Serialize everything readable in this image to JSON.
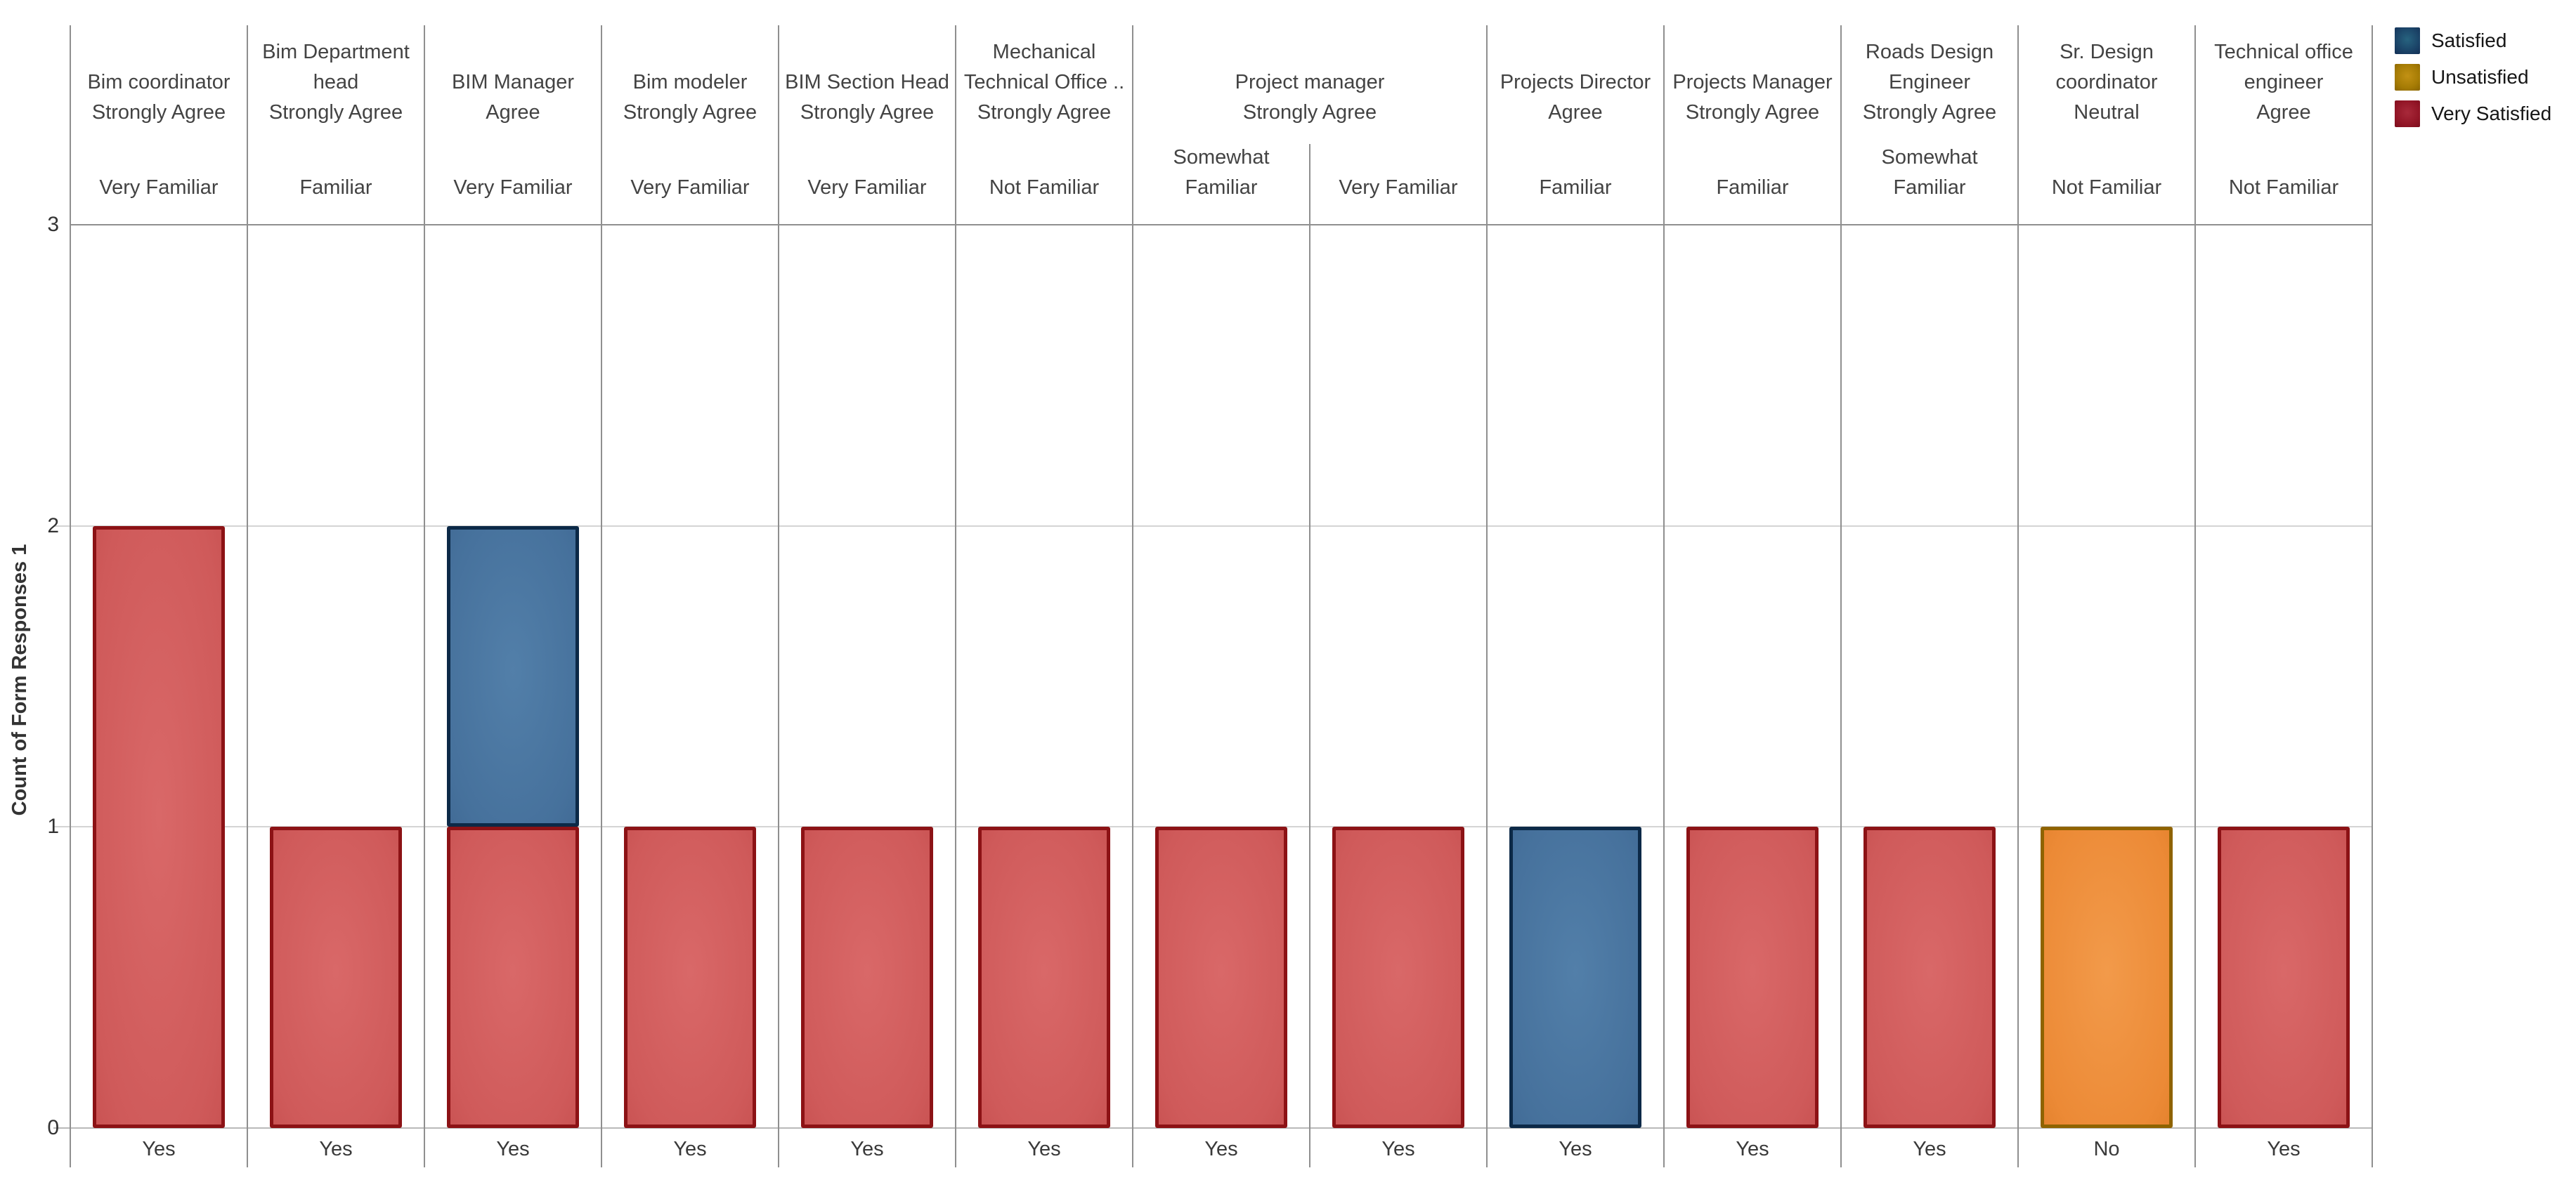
{
  "chart_data": {
    "type": "bar",
    "title": "",
    "xlabel": "",
    "ylabel": "Count of Form Responses 1",
    "ylim": [
      0,
      3
    ],
    "yticks": [
      0,
      1,
      2,
      3
    ],
    "grid": "horizontal",
    "legend_position": "top-right",
    "legend": [
      {
        "label": "Satisfied",
        "inner": "#27637f",
        "mid": "#1b4468",
        "outer": "#132f55"
      },
      {
        "label": "Unsatisfied",
        "inner": "#c29114",
        "mid": "#a67c05",
        "outer": "#8a6500"
      },
      {
        "label": "Very Satisfied",
        "inner": "#a8293a",
        "mid": "#931627",
        "outer": "#7c0d1c"
      }
    ],
    "series_colors": {
      "Satisfied": {
        "fill_center": "#527fa9",
        "fill_mid": "#46719c",
        "fill_edge": "#3a628c",
        "border": "#0c2947"
      },
      "Unsatisfied": {
        "fill_center": "#f29a4a",
        "fill_mid": "#ec8a36",
        "fill_edge": "#d97722",
        "border": "#8f6300"
      },
      "Very Satisfied": {
        "fill_center": "#d96868",
        "fill_mid": "#cf5a5a",
        "fill_edge": "#c04848",
        "border": "#8c1215"
      }
    },
    "groups": [
      {
        "title_lines": [
          "Bim coordinator"
        ],
        "agreement": "Strongly Agree",
        "cells": [
          {
            "familiarity_lines": [
              "Very Familiar"
            ],
            "answer": "Yes",
            "segments": [
              {
                "series": "Very Satisfied",
                "value": 2
              }
            ]
          }
        ]
      },
      {
        "title_lines": [
          "Bim Department",
          "head"
        ],
        "agreement": "Strongly Agree",
        "cells": [
          {
            "familiarity_lines": [
              "Familiar"
            ],
            "answer": "Yes",
            "segments": [
              {
                "series": "Very Satisfied",
                "value": 1
              }
            ]
          }
        ]
      },
      {
        "title_lines": [
          "BIM Manager"
        ],
        "agreement": "Agree",
        "cells": [
          {
            "familiarity_lines": [
              "Very Familiar"
            ],
            "answer": "Yes",
            "segments": [
              {
                "series": "Very Satisfied",
                "value": 1
              },
              {
                "series": "Satisfied",
                "value": 1
              }
            ]
          }
        ]
      },
      {
        "title_lines": [
          "Bim modeler"
        ],
        "agreement": "Strongly Agree",
        "cells": [
          {
            "familiarity_lines": [
              "Very Familiar"
            ],
            "answer": "Yes",
            "segments": [
              {
                "series": "Very Satisfied",
                "value": 1
              }
            ]
          }
        ]
      },
      {
        "title_lines": [
          "BIM Section Head"
        ],
        "agreement": "Strongly Agree",
        "cells": [
          {
            "familiarity_lines": [
              "Very Familiar"
            ],
            "answer": "Yes",
            "segments": [
              {
                "series": "Very Satisfied",
                "value": 1
              }
            ]
          }
        ]
      },
      {
        "title_lines": [
          "Mechanical",
          "Technical Office .."
        ],
        "agreement": "Strongly Agree",
        "cells": [
          {
            "familiarity_lines": [
              "Not Familiar"
            ],
            "answer": "Yes",
            "segments": [
              {
                "series": "Very Satisfied",
                "value": 1
              }
            ]
          }
        ]
      },
      {
        "title_lines": [
          "Project manager"
        ],
        "agreement": "Strongly Agree",
        "cells": [
          {
            "familiarity_lines": [
              "Somewhat",
              "Familiar"
            ],
            "answer": "Yes",
            "segments": [
              {
                "series": "Very Satisfied",
                "value": 1
              }
            ]
          },
          {
            "familiarity_lines": [
              "Very Familiar"
            ],
            "answer": "Yes",
            "segments": [
              {
                "series": "Very Satisfied",
                "value": 1
              }
            ]
          }
        ]
      },
      {
        "title_lines": [
          "Projects Director"
        ],
        "agreement": "Agree",
        "cells": [
          {
            "familiarity_lines": [
              "Familiar"
            ],
            "answer": "Yes",
            "segments": [
              {
                "series": "Satisfied",
                "value": 1
              }
            ]
          }
        ]
      },
      {
        "title_lines": [
          "Projects Manager"
        ],
        "agreement": "Strongly Agree",
        "cells": [
          {
            "familiarity_lines": [
              "Familiar"
            ],
            "answer": "Yes",
            "segments": [
              {
                "series": "Very Satisfied",
                "value": 1
              }
            ]
          }
        ]
      },
      {
        "title_lines": [
          "Roads Design",
          "Engineer"
        ],
        "agreement": "Strongly Agree",
        "cells": [
          {
            "familiarity_lines": [
              "Somewhat",
              "Familiar"
            ],
            "answer": "Yes",
            "segments": [
              {
                "series": "Very Satisfied",
                "value": 1
              }
            ]
          }
        ]
      },
      {
        "title_lines": [
          "Sr. Design",
          "coordinator"
        ],
        "agreement": "Neutral",
        "cells": [
          {
            "familiarity_lines": [
              "Not Familiar"
            ],
            "answer": "No",
            "segments": [
              {
                "series": "Unsatisfied",
                "value": 1
              }
            ]
          }
        ]
      },
      {
        "title_lines": [
          "Technical  office",
          "engineer"
        ],
        "agreement": "Agree",
        "cells": [
          {
            "familiarity_lines": [
              "Not Familiar"
            ],
            "answer": "Yes",
            "segments": [
              {
                "series": "Very Satisfied",
                "value": 1
              }
            ]
          }
        ]
      }
    ]
  }
}
